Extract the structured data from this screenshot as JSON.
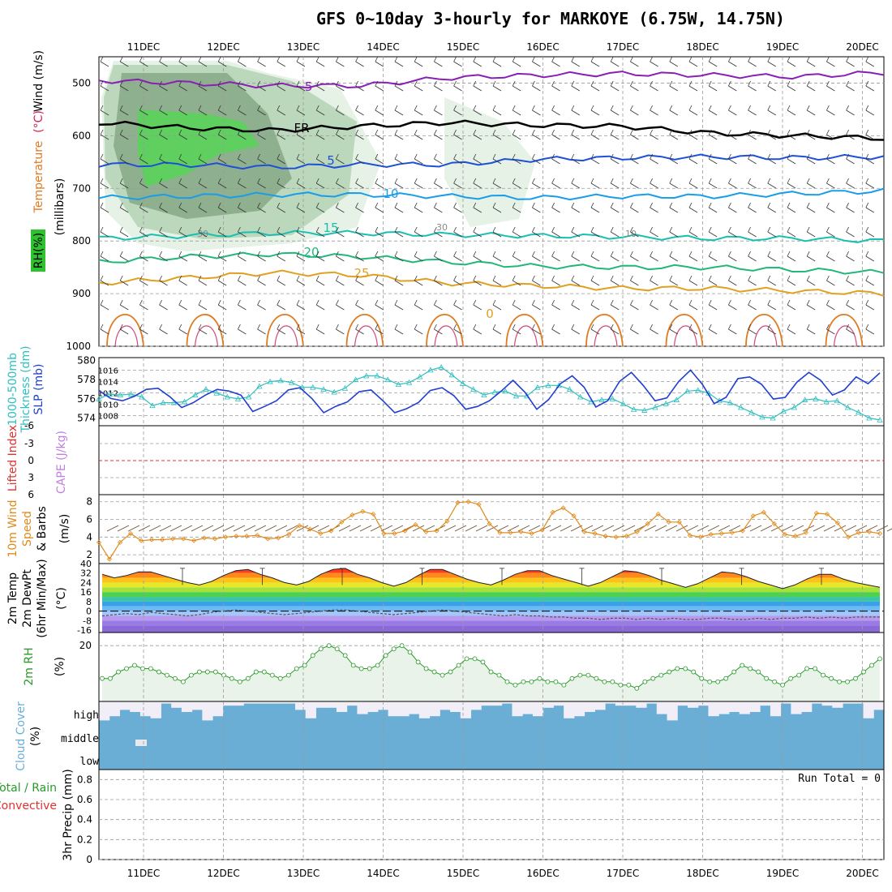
{
  "title": "GFS 0~10day 3-hourly for MARKOYE (6.75W, 14.75N)",
  "dates": [
    "11DEC",
    "12DEC",
    "13DEC",
    "14DEC",
    "15DEC",
    "16DEC",
    "17DEC",
    "18DEC",
    "19DEC",
    "20DEC"
  ],
  "colors": {
    "temp_neg": "#8a1fb5",
    "temp_fr": "#000000",
    "temp_5": "#1e4fd8",
    "temp_10": "#1a9de8",
    "temp_15": "#19bfb0",
    "temp_20": "#22b77a",
    "temp_25": "#e0a020",
    "temp_30": "#e07a20",
    "rh_light": "#e6f2e6",
    "rh_mid": "#bcd8bc",
    "rh_dark": "#8fb08f",
    "rh_green": "#5fcf5f",
    "slp": "#1f3fd0",
    "thickness": "#2fbfbf",
    "wind10": "#e08a1a",
    "rh2m": "#2a9a2a",
    "cloud": "#6aaed6",
    "cloud_bg": "#f2eef7",
    "zero_line": "#e03030"
  },
  "chart_data": [
    {
      "type": "heatmap",
      "panel": "upper-air",
      "ylabel": "(millibars)",
      "legend_labels": {
        "rh": "RH(%)",
        "temp": "Temperature",
        "temp_unit": "(°C)",
        "wind": "Wind (m/s)"
      },
      "yticks": [
        500,
        600,
        700,
        800,
        900,
        1000
      ],
      "ylim": [
        1000,
        450
      ],
      "isotherm_labels": [
        "-5",
        "FR",
        "5",
        "10",
        "15",
        "20",
        "25",
        "0"
      ],
      "rh_labels": [
        "30",
        "30",
        "10"
      ],
      "isotherms": [
        {
          "label": "-5",
          "level_mb": [
            495,
            500,
            505,
            505,
            490,
            485,
            482,
            485,
            488,
            480
          ]
        },
        {
          "label": "FR",
          "level_mb": [
            575,
            585,
            590,
            582,
            575,
            580,
            582,
            595,
            600,
            605
          ]
        },
        {
          "label": "5",
          "level_mb": [
            655,
            655,
            660,
            655,
            655,
            645,
            642,
            640,
            642,
            640
          ]
        },
        {
          "label": "10",
          "level_mb": [
            718,
            715,
            712,
            712,
            715,
            718,
            715,
            715,
            710,
            705
          ]
        },
        {
          "label": "15",
          "level_mb": [
            795,
            790,
            785,
            785,
            788,
            790,
            792,
            795,
            795,
            800
          ]
        },
        {
          "label": "20",
          "level_mb": [
            840,
            830,
            825,
            830,
            840,
            848,
            850,
            850,
            855,
            860
          ]
        },
        {
          "label": "25",
          "level_mb": [
            880,
            870,
            860,
            865,
            880,
            885,
            890,
            890,
            895,
            900
          ]
        }
      ]
    },
    {
      "type": "line",
      "panel": "thickness-slp",
      "ylabel_left": "Thickness (dm)",
      "ylabel_left_top": "1000-500mb",
      "ylabel_right": "SLP (mb)",
      "yticks_left": [
        574,
        576,
        578,
        580
      ],
      "yticks_right": [
        1008,
        1010,
        1012,
        1014,
        1016
      ],
      "series": [
        {
          "name": "SLP (mb)",
          "color": "#1f3fd0",
          "values": [
            1012.4,
            1011.0,
            1010.6,
            1011.4,
            1012.6,
            1012.8,
            1011.3,
            1009.4,
            1010.3,
            1011.6,
            1012.6,
            1012.3,
            1011.6,
            1008.7,
            1009.6,
            1010.6,
            1012.5,
            1012.9,
            1011.0,
            1008.5,
            1009.6,
            1010.4,
            1012.2,
            1012.5,
            1010.6,
            1008.5,
            1009.2,
            1010.3,
            1012.4,
            1012.9,
            1011.5,
            1009.1,
            1009.6,
            1010.6,
            1012.3,
            1014.2,
            1012.1,
            1009.1,
            1010.8,
            1013.6,
            1015.0,
            1013.0,
            1009.5,
            1010.6,
            1014.0,
            1015.6,
            1013.3,
            1010.6,
            1011.1,
            1014.0,
            1016.0,
            1013.5,
            1010.1,
            1011.2,
            1014.5,
            1014.8,
            1013.5,
            1010.9,
            1011.2,
            1013.9,
            1015.6,
            1014.2,
            1011.6,
            1012.5,
            1014.8,
            1013.6,
            1015.5
          ]
        },
        {
          "name": "Thickness (dm)",
          "color": "#2fbfbf",
          "values": [
            576.0,
            576.5,
            576.4,
            576.5,
            576.2,
            575.3,
            575.6,
            575.6,
            575.7,
            576.4,
            577.0,
            576.6,
            576.2,
            576.0,
            576.2,
            577.3,
            577.8,
            577.9,
            577.7,
            577.2,
            577.2,
            577.0,
            576.7,
            577.1,
            578.0,
            578.4,
            578.4,
            578.0,
            577.5,
            577.7,
            578.3,
            579.0,
            579.3,
            578.5,
            577.6,
            577.0,
            576.4,
            576.7,
            576.8,
            576.3,
            576.3,
            577.2,
            577.4,
            577.4,
            577.0,
            576.2,
            575.7,
            575.9,
            576.0,
            575.5,
            574.9,
            574.8,
            575.1,
            575.5,
            575.9,
            576.8,
            576.9,
            576.6,
            575.8,
            575.6,
            575.1,
            574.6,
            574.1,
            574.0,
            574.7,
            575.1,
            575.9,
            576.0,
            575.7,
            575.8,
            575.1,
            574.6,
            574.0,
            573.8
          ]
        }
      ]
    },
    {
      "type": "line",
      "panel": "cape-li",
      "ylabel_left": "Lifted Index",
      "ylabel_right": "CAPE (J/kg)",
      "yticks_left": [
        "-6",
        "-3",
        "0",
        "3",
        "6"
      ],
      "series": [
        {
          "name": "Lifted Index",
          "color": "#e03030",
          "values": [
            0,
            0,
            0,
            0,
            0,
            0,
            0,
            0,
            0,
            0
          ]
        },
        {
          "name": "CAPE (J/kg)",
          "color": "#c080e0",
          "values": [
            0,
            0,
            0,
            0,
            0,
            0,
            0,
            0,
            0,
            0
          ]
        }
      ]
    },
    {
      "type": "line",
      "panel": "wind10m",
      "ylabel": "10m Wind",
      "ylabel2": "Speed",
      "ylabel3": "& Barbs",
      "yunit": "(m/s)",
      "yticks": [
        2,
        4,
        6,
        8
      ],
      "series": [
        {
          "name": "10m Wind Speed",
          "color": "#e08a1a",
          "values": [
            3.4,
            1.5,
            3.4,
            4.4,
            3.6,
            3.7,
            3.7,
            3.8,
            3.8,
            3.6,
            3.9,
            3.8,
            4.0,
            4.1,
            4.1,
            4.2,
            3.8,
            3.9,
            4.3,
            5.3,
            4.9,
            4.4,
            4.7,
            5.7,
            6.5,
            6.9,
            6.6,
            4.4,
            4.4,
            4.7,
            5.4,
            4.6,
            4.7,
            5.8,
            7.9,
            8.0,
            7.7,
            5.5,
            4.5,
            4.5,
            4.6,
            4.4,
            4.8,
            6.8,
            7.3,
            6.4,
            4.6,
            4.4,
            4.1,
            4.0,
            4.1,
            4.6,
            5.5,
            6.6,
            5.7,
            5.7,
            4.2,
            4.0,
            4.3,
            4.4,
            4.5,
            4.7,
            6.4,
            6.8,
            5.5,
            4.3,
            4.1,
            4.5,
            6.7,
            6.6,
            5.6,
            4.0,
            4.5,
            4.6,
            4.4
          ]
        }
      ]
    },
    {
      "type": "area",
      "panel": "temp-dewpoint",
      "ylabel": "2m Temp",
      "ylabel2": "2m DewPt",
      "ylabel3": "(6hr Min/Max)",
      "yunit": "(°C)",
      "yticks": [
        "40",
        "32",
        "24",
        "16",
        "8",
        "0",
        "-8",
        "-16"
      ],
      "series": [
        {
          "name": "2m Temp",
          "values": [
            31,
            28,
            30,
            33,
            33,
            30,
            27,
            24,
            22,
            25,
            30,
            34,
            35,
            31,
            28,
            24,
            22,
            25,
            31,
            35,
            36,
            31,
            28,
            24,
            21,
            24,
            30,
            35,
            35,
            31,
            27,
            24,
            22,
            26,
            31,
            34,
            34,
            30,
            27,
            24,
            21,
            24,
            29,
            34,
            33,
            30,
            26,
            23,
            20,
            23,
            28,
            33,
            32,
            29,
            25,
            22,
            19,
            22,
            27,
            31,
            31,
            27,
            24,
            22,
            20
          ]
        },
        {
          "name": "2m DewPt",
          "values": [
            -4,
            -3,
            -2,
            -3,
            -1,
            -2,
            -3,
            -4,
            -3,
            -1,
            0,
            1,
            0,
            -1,
            -2,
            -3,
            -2,
            -1,
            0,
            1,
            1,
            0,
            -1,
            -2,
            -3,
            -2,
            -1,
            0,
            1,
            0,
            -1,
            -2,
            -3,
            -4,
            -3,
            -4,
            -4,
            -5,
            -5,
            -6,
            -6,
            -7,
            -6,
            -6,
            -7,
            -6,
            -7,
            -6,
            -7,
            -7,
            -6,
            -6,
            -7,
            -7,
            -6,
            -7,
            -6,
            -6,
            -5,
            -6,
            -5,
            -6,
            -5,
            -5,
            -5
          ]
        }
      ]
    },
    {
      "type": "line",
      "panel": "rh2m",
      "ylabel": "2m RH",
      "yunit": "(%)",
      "yticks": [
        20
      ],
      "series": [
        {
          "name": "2m RH",
          "color": "#2a9a2a",
          "values": [
            10,
            10,
            12,
            13,
            14,
            13,
            13,
            12,
            11,
            10,
            9,
            11,
            12,
            12,
            12,
            11,
            10,
            9,
            10,
            12,
            12,
            11,
            10,
            11,
            13,
            14,
            17,
            19,
            20,
            19,
            17,
            14,
            13,
            13,
            14,
            17,
            19,
            20,
            18,
            15,
            13,
            12,
            11,
            12,
            14,
            16,
            16,
            15,
            12,
            11,
            9,
            8,
            9,
            9,
            10,
            9,
            9,
            8,
            10,
            11,
            11,
            10,
            9,
            9,
            8,
            8,
            7,
            9,
            10,
            11,
            12,
            13,
            13,
            12,
            10,
            9,
            9,
            10,
            12,
            14,
            13,
            12,
            10,
            9,
            8,
            10,
            11,
            13,
            13,
            11,
            10,
            9,
            9,
            10,
            12,
            14,
            16
          ]
        }
      ]
    },
    {
      "type": "heatmap",
      "panel": "cloud-cover",
      "ylabel": "Cloud Cover",
      "yunit": "(%)",
      "yticks": [
        "high",
        "middle",
        "low"
      ]
    },
    {
      "type": "bar",
      "panel": "precip",
      "ylabel": "3hr Precip (mm)",
      "legend_total": "Total / Rain",
      "legend_conv": "Convective",
      "run_total": "Run Total = 0",
      "yticks": [
        "0",
        "0.2",
        "0.4",
        "0.6",
        "0.8"
      ],
      "values": []
    }
  ]
}
